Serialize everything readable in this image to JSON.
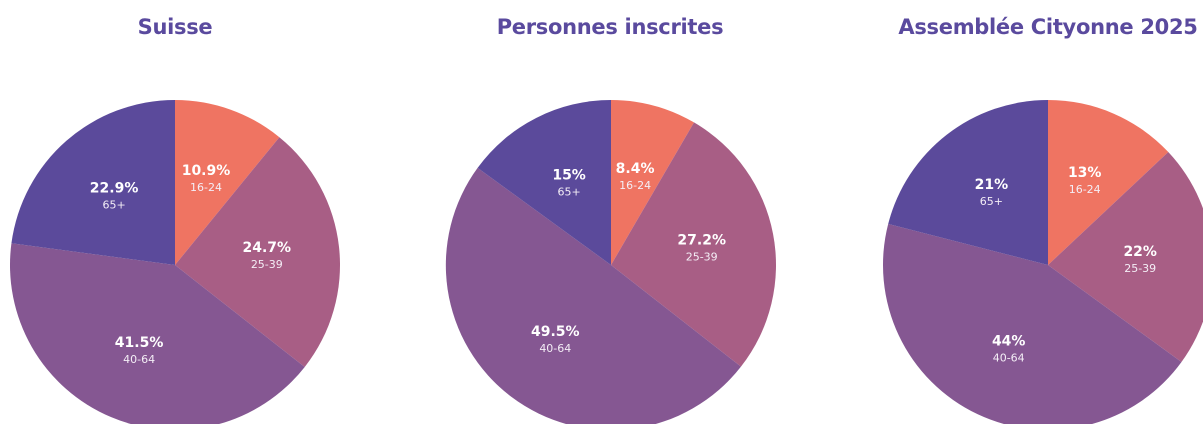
{
  "chart_data": [
    {
      "type": "pie",
      "title": "Suisse",
      "categories": [
        "16-24",
        "25-39",
        "40-64",
        "65+"
      ],
      "values": [
        10.9,
        24.7,
        41.5,
        22.9
      ],
      "labels": [
        "10.9%",
        "24.7%",
        "41.5%",
        "22.9%"
      ]
    },
    {
      "type": "pie",
      "title": "Personnes inscrites",
      "categories": [
        "16-24",
        "25-39",
        "40-64",
        "65+"
      ],
      "values": [
        8.4,
        27.2,
        49.5,
        15
      ],
      "labels": [
        "8.4%",
        "27.2%",
        "49.5%",
        "15%"
      ]
    },
    {
      "type": "pie",
      "title": "Assemblée Cityonne 2025",
      "categories": [
        "16-24",
        "25-39",
        "40-64",
        "65+"
      ],
      "values": [
        13,
        22,
        44,
        21
      ],
      "labels": [
        "13%",
        "22%",
        "44%",
        "21%"
      ]
    }
  ],
  "colors": {
    "16-24": "#ef7462",
    "25-39": "#a85e85",
    "40-64": "#855792",
    "65+": "#5b4a9b",
    "title": "#5a4a9e"
  }
}
